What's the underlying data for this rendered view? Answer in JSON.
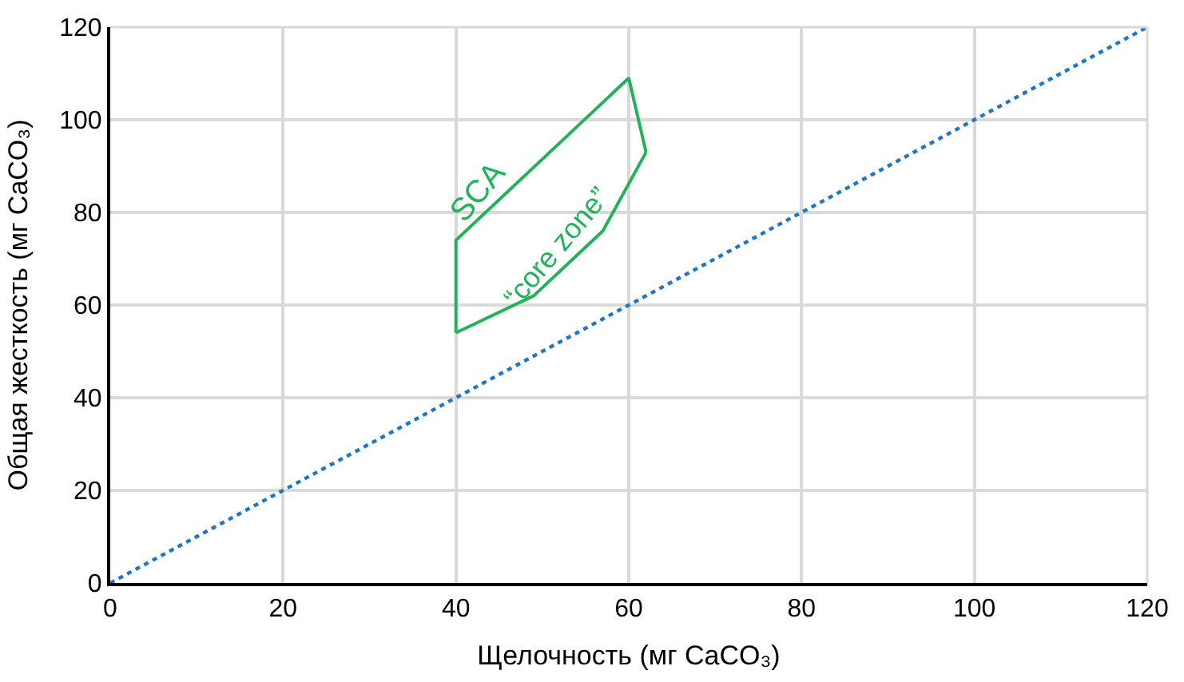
{
  "chart_data": {
    "type": "line",
    "xlabel": "Щелочность (мг CaCO₃)",
    "ylabel": "Общая жесткость (мг CaCO₃)",
    "annotations": [
      "SCA",
      "“core zone”"
    ],
    "series": [
      {
        "color": "#22b35a",
        "line_style": "solid",
        "x": [
          40,
          40,
          60,
          62
        ],
        "values": [
          54,
          74,
          109,
          93
        ]
      },
      {
        "color": "#22b35a",
        "line_style": "solid",
        "x": [
          40,
          49,
          57,
          62
        ],
        "values": [
          54,
          62,
          76,
          93
        ]
      },
      {
        "color": "#1f77c4",
        "line_style": "dotted",
        "x": [
          0,
          120
        ],
        "values": [
          0,
          120
        ]
      }
    ],
    "xlim": [
      0,
      120
    ],
    "xticks": [
      0,
      20,
      40,
      60,
      80,
      100,
      120
    ],
    "ylim": [
      0,
      120
    ],
    "yticks": [
      0,
      20,
      40,
      60,
      80,
      100,
      120
    ],
    "grid": true,
    "marker": "none"
  }
}
